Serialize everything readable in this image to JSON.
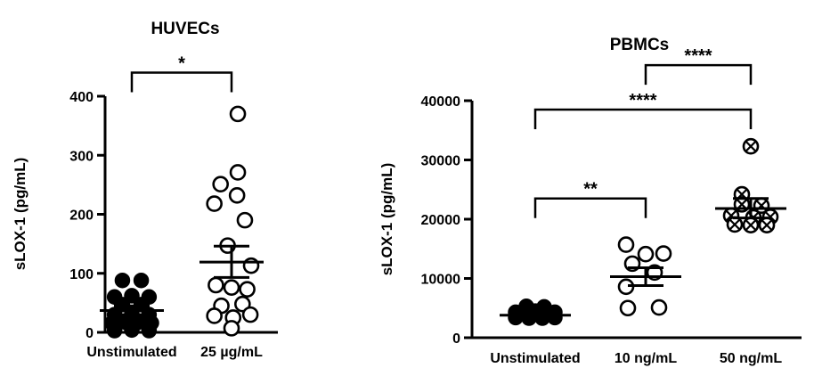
{
  "chart_data": [
    {
      "type": "scatter",
      "title": "HUVECs",
      "xlabel": "",
      "ylabel": "sLOX-1 (pg/mL)",
      "ylim": [
        0,
        400
      ],
      "yticks": [
        0,
        100,
        200,
        300,
        400
      ],
      "categories": [
        "Unstimulated",
        "25 µg/mL"
      ],
      "series": [
        {
          "category": "Unstimulated",
          "marker": "filled-circle",
          "mean": 37,
          "sem_low": 30,
          "sem_high": 45,
          "points": [
            {
              "x": -0.12,
              "y": 88
            },
            {
              "x": 0.12,
              "y": 88
            },
            {
              "x": -0.22,
              "y": 60
            },
            {
              "x": 0.0,
              "y": 62
            },
            {
              "x": 0.22,
              "y": 60
            },
            {
              "x": -0.12,
              "y": 47
            },
            {
              "x": 0.12,
              "y": 47
            },
            {
              "x": -0.22,
              "y": 30
            },
            {
              "x": 0.0,
              "y": 31
            },
            {
              "x": 0.22,
              "y": 30
            },
            {
              "x": -0.25,
              "y": 16
            },
            {
              "x": -0.08,
              "y": 17
            },
            {
              "x": 0.08,
              "y": 17
            },
            {
              "x": 0.25,
              "y": 16
            },
            {
              "x": -0.22,
              "y": 3
            },
            {
              "x": 0.0,
              "y": 4
            },
            {
              "x": 0.22,
              "y": 3
            }
          ]
        },
        {
          "category": "25 µg/mL",
          "marker": "open-circle",
          "mean": 119,
          "sem_low": 93,
          "sem_high": 146,
          "points": [
            {
              "x": 0.08,
              "y": 370
            },
            {
              "x": 0.08,
              "y": 271
            },
            {
              "x": -0.14,
              "y": 251
            },
            {
              "x": 0.07,
              "y": 232
            },
            {
              "x": -0.22,
              "y": 218
            },
            {
              "x": 0.17,
              "y": 190
            },
            {
              "x": -0.05,
              "y": 147
            },
            {
              "x": 0.25,
              "y": 113
            },
            {
              "x": -0.2,
              "y": 80
            },
            {
              "x": 0.0,
              "y": 76
            },
            {
              "x": 0.2,
              "y": 73
            },
            {
              "x": -0.13,
              "y": 45
            },
            {
              "x": 0.14,
              "y": 48
            },
            {
              "x": -0.22,
              "y": 28
            },
            {
              "x": 0.02,
              "y": 25
            },
            {
              "x": 0.24,
              "y": 30
            },
            {
              "x": 0.0,
              "y": 7
            }
          ]
        }
      ],
      "annotations": [
        {
          "from": "Unstimulated",
          "to": "25 µg/mL",
          "label": "*",
          "y": 440
        }
      ]
    },
    {
      "type": "scatter",
      "title": "PBMCs",
      "xlabel": "",
      "ylabel": "sLOX-1 (pg/mL)",
      "ylim": [
        0,
        40000
      ],
      "yticks": [
        0,
        10000,
        20000,
        30000,
        40000
      ],
      "categories": [
        "Unstimulated",
        "10 ng/mL",
        "50 ng/mL"
      ],
      "series": [
        {
          "category": "Unstimulated",
          "marker": "filled-circle",
          "mean": 3800,
          "sem_low": 3600,
          "sem_high": 4000,
          "points": [
            {
              "x": -0.1,
              "y": 5300
            },
            {
              "x": 0.1,
              "y": 5200
            },
            {
              "x": -0.22,
              "y": 4300
            },
            {
              "x": 0.0,
              "y": 4500
            },
            {
              "x": 0.22,
              "y": 4300
            },
            {
              "x": -0.22,
              "y": 3400
            },
            {
              "x": -0.07,
              "y": 3300
            },
            {
              "x": 0.08,
              "y": 3300
            },
            {
              "x": 0.22,
              "y": 3400
            }
          ]
        },
        {
          "category": "10 ng/mL",
          "marker": "open-circle",
          "mean": 10300,
          "sem_low": 8800,
          "sem_high": 11800,
          "points": [
            {
              "x": -0.22,
              "y": 15700
            },
            {
              "x": 0.0,
              "y": 14100
            },
            {
              "x": 0.2,
              "y": 14200
            },
            {
              "x": -0.15,
              "y": 12500
            },
            {
              "x": 0.1,
              "y": 11000
            },
            {
              "x": -0.22,
              "y": 8600
            },
            {
              "x": -0.2,
              "y": 5000
            },
            {
              "x": 0.15,
              "y": 5100
            }
          ]
        },
        {
          "category": "50 ng/mL",
          "marker": "crossed-circle",
          "mean": 21800,
          "sem_low": 20200,
          "sem_high": 23500,
          "points": [
            {
              "x": 0.0,
              "y": 32300
            },
            {
              "x": -0.1,
              "y": 24200
            },
            {
              "x": -0.22,
              "y": 20600
            },
            {
              "x": -0.1,
              "y": 22500
            },
            {
              "x": 0.12,
              "y": 22300
            },
            {
              "x": 0.03,
              "y": 20300
            },
            {
              "x": 0.22,
              "y": 20400
            },
            {
              "x": -0.18,
              "y": 19100
            },
            {
              "x": 0.0,
              "y": 19000
            },
            {
              "x": 0.18,
              "y": 19000
            }
          ]
        }
      ],
      "annotations": [
        {
          "from": "Unstimulated",
          "to": "10 ng/mL",
          "label": "**",
          "y": 23500
        },
        {
          "from": "Unstimulated",
          "to": "50 ng/mL",
          "label": "****",
          "y": 38500
        },
        {
          "from": "10 ng/mL",
          "to": "50 ng/mL",
          "label": "****",
          "y": 46000
        }
      ]
    }
  ]
}
